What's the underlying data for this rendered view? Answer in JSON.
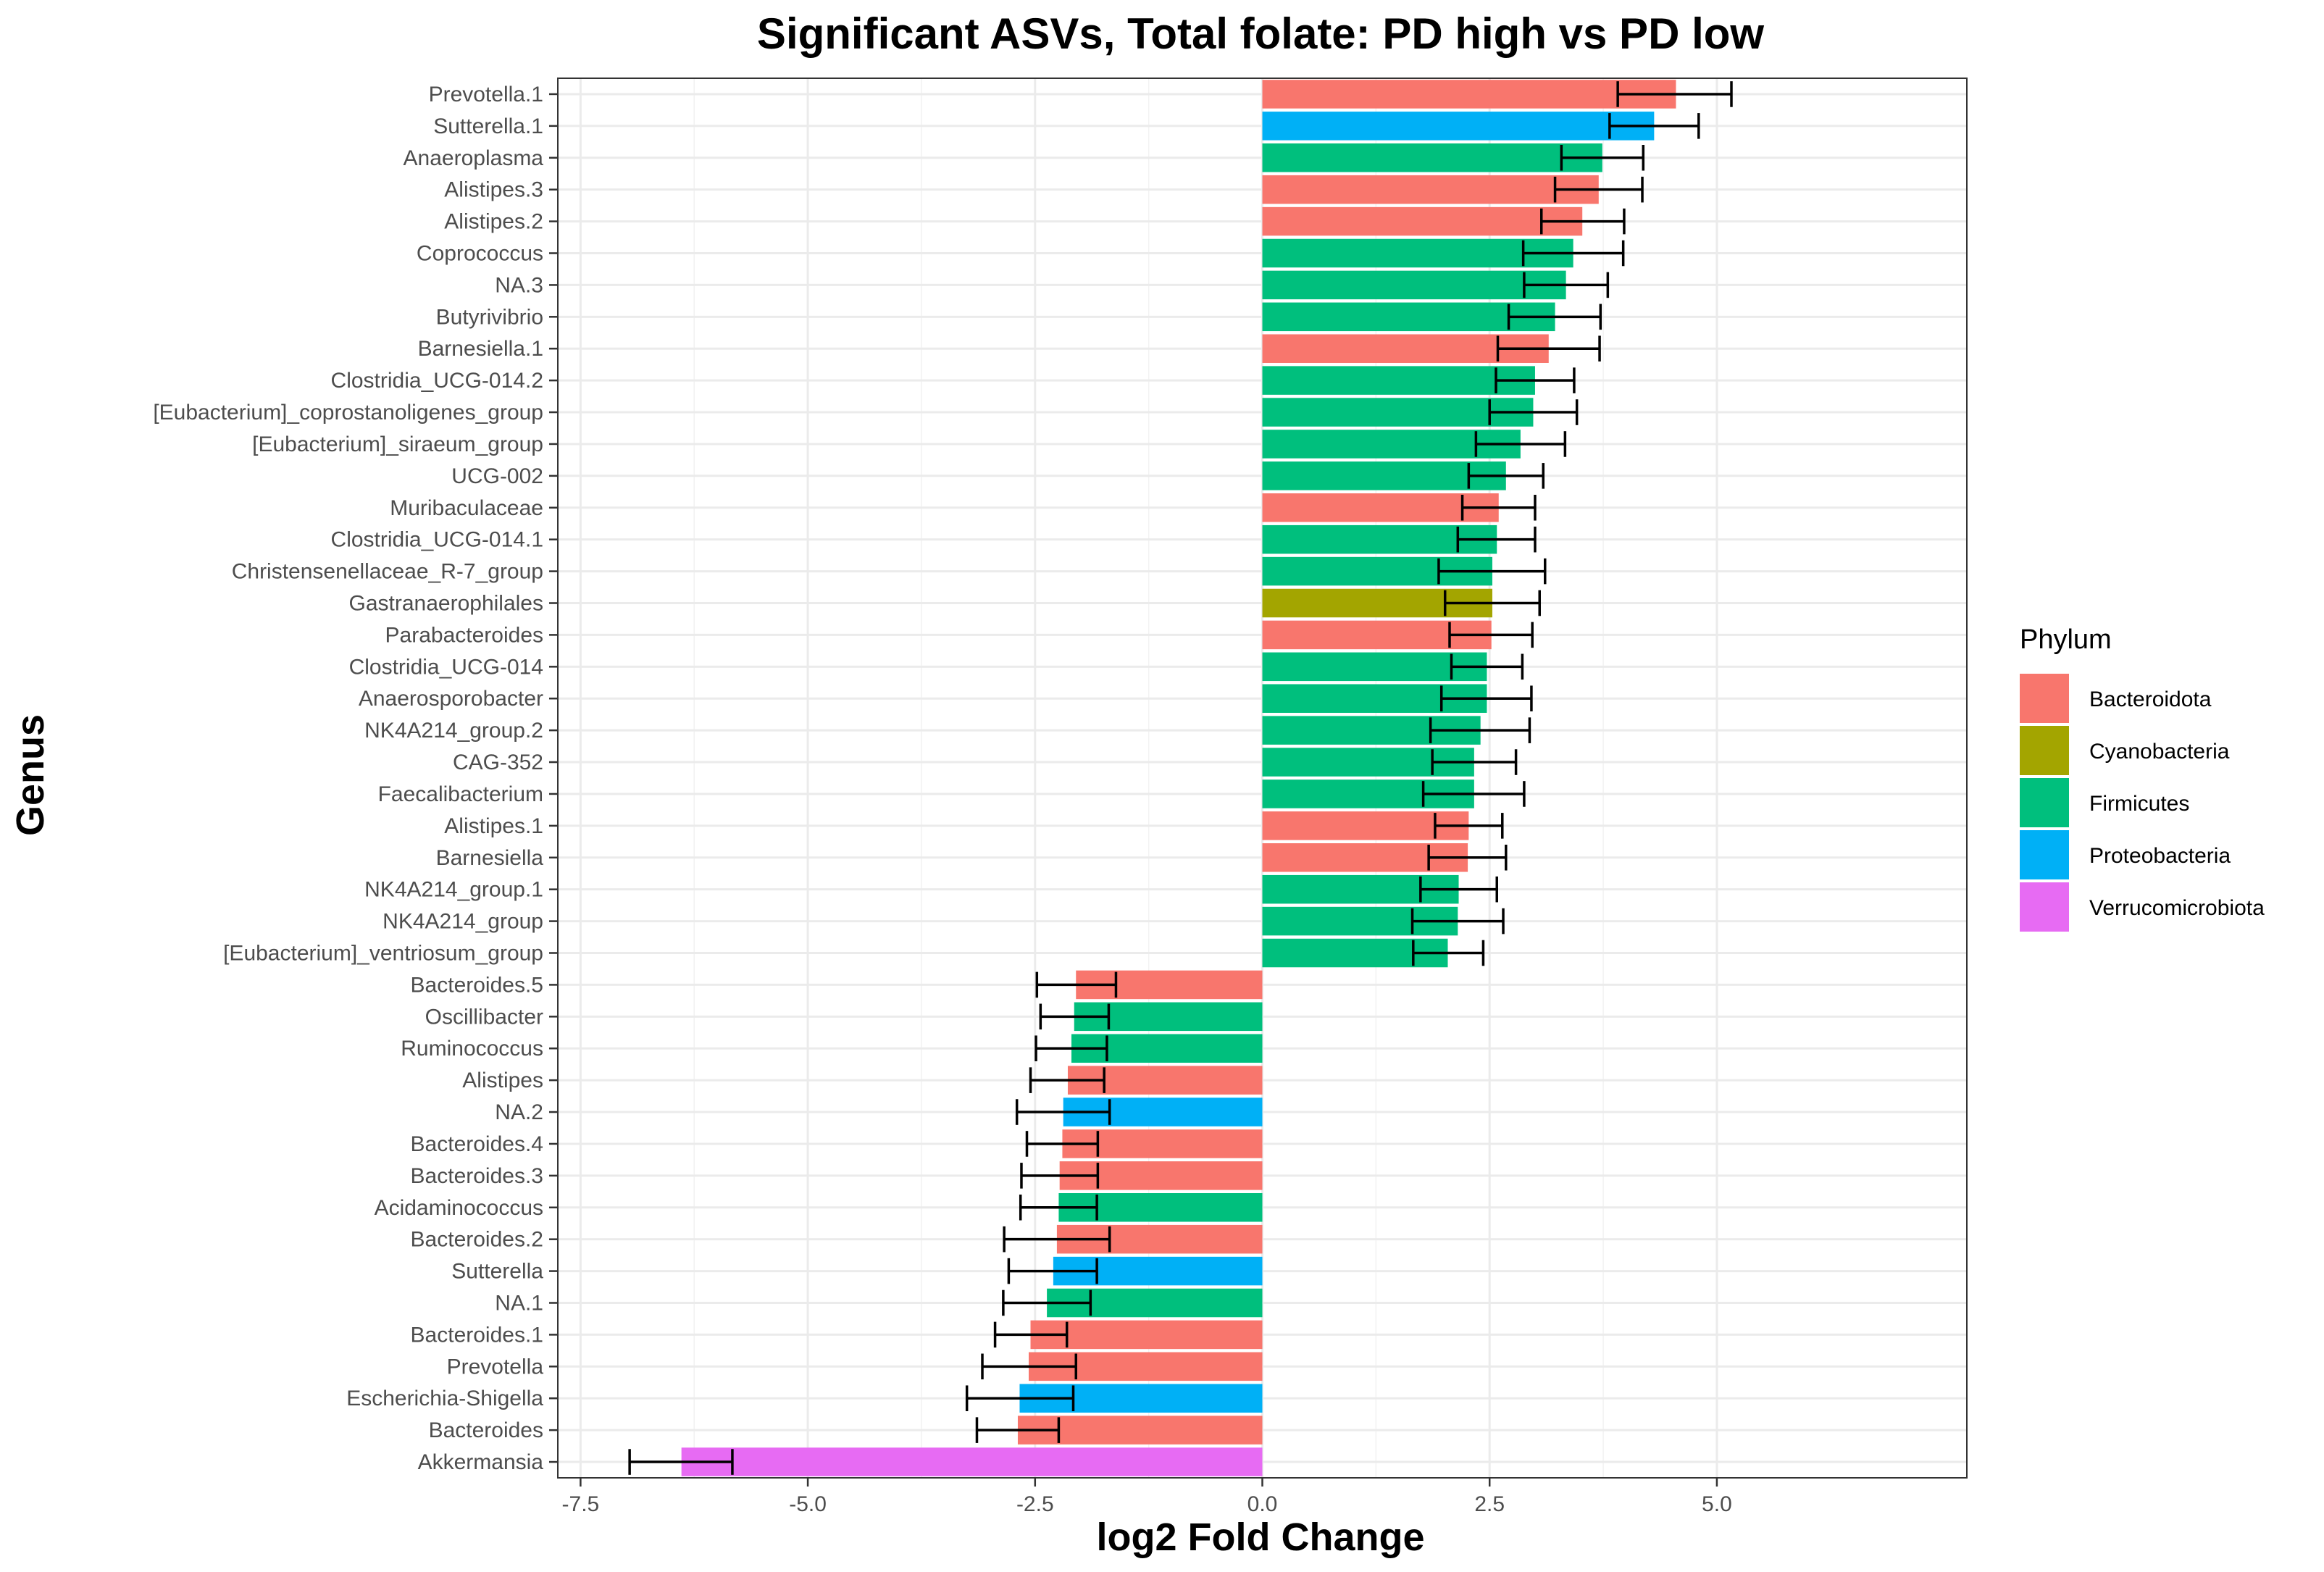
{
  "chart_data": {
    "type": "bar",
    "orientation": "horizontal",
    "title": "Significant ASVs, Total folate: PD high vs PD low",
    "xlabel": "log2 Fold Change",
    "ylabel": "Genus",
    "xlim": [
      -7.75,
      7.75
    ],
    "xticks": [
      -7.5,
      -5.0,
      -2.5,
      0.0,
      2.5,
      5.0
    ],
    "xtick_labels": [
      "-7.5",
      "-5.0",
      "-2.5",
      "0.0",
      "2.5",
      "5.0"
    ],
    "grid": true,
    "legend": {
      "title": "Phylum",
      "position": "right",
      "entries": [
        {
          "name": "Bacteroidota",
          "color": "#F8766D"
        },
        {
          "name": "Cyanobacteria",
          "color": "#A3A500"
        },
        {
          "name": "Firmicutes",
          "color": "#00BF7D"
        },
        {
          "name": "Proteobacteria",
          "color": "#00B0F6"
        },
        {
          "name": "Verrucomicrobiota",
          "color": "#E76BF3"
        }
      ]
    },
    "bars": [
      {
        "genus": "Prevotella.1",
        "phylum": "Bacteroidota",
        "value": 4.55,
        "err_low": 3.91,
        "err_high": 5.16
      },
      {
        "genus": "Sutterella.1",
        "phylum": "Proteobacteria",
        "value": 4.31,
        "err_low": 3.82,
        "err_high": 4.8
      },
      {
        "genus": "Anaeroplasma",
        "phylum": "Firmicutes",
        "value": 3.74,
        "err_low": 3.29,
        "err_high": 4.19
      },
      {
        "genus": "Alistipes.3",
        "phylum": "Bacteroidota",
        "value": 3.7,
        "err_low": 3.22,
        "err_high": 4.18
      },
      {
        "genus": "Alistipes.2",
        "phylum": "Bacteroidota",
        "value": 3.52,
        "err_low": 3.07,
        "err_high": 3.98
      },
      {
        "genus": "Coprococcus",
        "phylum": "Firmicutes",
        "value": 3.42,
        "err_low": 2.87,
        "err_high": 3.97
      },
      {
        "genus": "NA.3",
        "phylum": "Firmicutes",
        "value": 3.34,
        "err_low": 2.88,
        "err_high": 3.8
      },
      {
        "genus": "Butyrivibrio",
        "phylum": "Firmicutes",
        "value": 3.22,
        "err_low": 2.71,
        "err_high": 3.72
      },
      {
        "genus": "Barnesiella.1",
        "phylum": "Bacteroidota",
        "value": 3.15,
        "err_low": 2.59,
        "err_high": 3.71
      },
      {
        "genus": "Clostridia_UCG-014.2",
        "phylum": "Firmicutes",
        "value": 3.0,
        "err_low": 2.57,
        "err_high": 3.43
      },
      {
        "genus": "[Eubacterium]_coprostanoligenes_group",
        "phylum": "Firmicutes",
        "value": 2.98,
        "err_low": 2.5,
        "err_high": 3.46
      },
      {
        "genus": "[Eubacterium]_siraeum_group",
        "phylum": "Firmicutes",
        "value": 2.84,
        "err_low": 2.35,
        "err_high": 3.33
      },
      {
        "genus": "UCG-002",
        "phylum": "Firmicutes",
        "value": 2.68,
        "err_low": 2.27,
        "err_high": 3.09
      },
      {
        "genus": "Muribaculaceae",
        "phylum": "Bacteroidota",
        "value": 2.6,
        "err_low": 2.2,
        "err_high": 3.0
      },
      {
        "genus": "Clostridia_UCG-014.1",
        "phylum": "Firmicutes",
        "value": 2.58,
        "err_low": 2.15,
        "err_high": 3.0
      },
      {
        "genus": "Christensenellaceae_R-7_group",
        "phylum": "Firmicutes",
        "value": 2.53,
        "err_low": 1.94,
        "err_high": 3.11
      },
      {
        "genus": "Gastranaerophilales",
        "phylum": "Cyanobacteria",
        "value": 2.53,
        "err_low": 2.01,
        "err_high": 3.05
      },
      {
        "genus": "Parabacteroides",
        "phylum": "Bacteroidota",
        "value": 2.52,
        "err_low": 2.06,
        "err_high": 2.97
      },
      {
        "genus": "Clostridia_UCG-014",
        "phylum": "Firmicutes",
        "value": 2.47,
        "err_low": 2.08,
        "err_high": 2.86
      },
      {
        "genus": "Anaerosporobacter",
        "phylum": "Firmicutes",
        "value": 2.47,
        "err_low": 1.97,
        "err_high": 2.96
      },
      {
        "genus": "NK4A214_group.2",
        "phylum": "Firmicutes",
        "value": 2.4,
        "err_low": 1.85,
        "err_high": 2.94
      },
      {
        "genus": "CAG-352",
        "phylum": "Firmicutes",
        "value": 2.33,
        "err_low": 1.87,
        "err_high": 2.79
      },
      {
        "genus": "Faecalibacterium",
        "phylum": "Firmicutes",
        "value": 2.33,
        "err_low": 1.77,
        "err_high": 2.88
      },
      {
        "genus": "Alistipes.1",
        "phylum": "Bacteroidota",
        "value": 2.27,
        "err_low": 1.9,
        "err_high": 2.64
      },
      {
        "genus": "Barnesiella",
        "phylum": "Bacteroidota",
        "value": 2.26,
        "err_low": 1.83,
        "err_high": 2.68
      },
      {
        "genus": "NK4A214_group.1",
        "phylum": "Firmicutes",
        "value": 2.16,
        "err_low": 1.74,
        "err_high": 2.58
      },
      {
        "genus": "NK4A214_group",
        "phylum": "Firmicutes",
        "value": 2.15,
        "err_low": 1.65,
        "err_high": 2.65
      },
      {
        "genus": "[Eubacterium]_ventriosum_group",
        "phylum": "Firmicutes",
        "value": 2.04,
        "err_low": 1.66,
        "err_high": 2.43
      },
      {
        "genus": "Bacteroides.5",
        "phylum": "Bacteroidota",
        "value": -2.05,
        "err_low": -2.48,
        "err_high": -1.61
      },
      {
        "genus": "Oscillibacter",
        "phylum": "Firmicutes",
        "value": -2.07,
        "err_low": -2.44,
        "err_high": -1.69
      },
      {
        "genus": "Ruminococcus",
        "phylum": "Firmicutes",
        "value": -2.1,
        "err_low": -2.49,
        "err_high": -1.71
      },
      {
        "genus": "Alistipes",
        "phylum": "Bacteroidota",
        "value": -2.14,
        "err_low": -2.55,
        "err_high": -1.74
      },
      {
        "genus": "NA.2",
        "phylum": "Proteobacteria",
        "value": -2.19,
        "err_low": -2.7,
        "err_high": -1.68
      },
      {
        "genus": "Bacteroides.4",
        "phylum": "Bacteroidota",
        "value": -2.2,
        "err_low": -2.59,
        "err_high": -1.81
      },
      {
        "genus": "Bacteroides.3",
        "phylum": "Bacteroidota",
        "value": -2.23,
        "err_low": -2.65,
        "err_high": -1.81
      },
      {
        "genus": "Acidaminococcus",
        "phylum": "Firmicutes",
        "value": -2.24,
        "err_low": -2.66,
        "err_high": -1.82
      },
      {
        "genus": "Bacteroides.2",
        "phylum": "Bacteroidota",
        "value": -2.26,
        "err_low": -2.84,
        "err_high": -1.68
      },
      {
        "genus": "Sutterella",
        "phylum": "Proteobacteria",
        "value": -2.3,
        "err_low": -2.79,
        "err_high": -1.82
      },
      {
        "genus": "NA.1",
        "phylum": "Firmicutes",
        "value": -2.37,
        "err_low": -2.85,
        "err_high": -1.89
      },
      {
        "genus": "Bacteroides.1",
        "phylum": "Bacteroidota",
        "value": -2.55,
        "err_low": -2.94,
        "err_high": -2.15
      },
      {
        "genus": "Prevotella",
        "phylum": "Bacteroidota",
        "value": -2.57,
        "err_low": -3.08,
        "err_high": -2.05
      },
      {
        "genus": "Escherichia-Shigella",
        "phylum": "Proteobacteria",
        "value": -2.67,
        "err_low": -3.25,
        "err_high": -2.08
      },
      {
        "genus": "Bacteroides",
        "phylum": "Bacteroidota",
        "value": -2.69,
        "err_low": -3.14,
        "err_high": -2.24
      },
      {
        "genus": "Akkermansia",
        "phylum": "Verrucomicrobiota",
        "value": -6.39,
        "err_low": -6.96,
        "err_high": -5.83
      }
    ]
  }
}
